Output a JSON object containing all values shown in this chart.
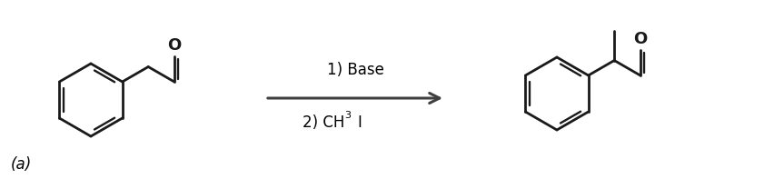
{
  "background_color": "#ffffff",
  "label_a": "(a)",
  "step1": "1) Base",
  "step2": "2) CH",
  "step2_sub": "3",
  "step2_end": "I",
  "arrow_color": "#404040",
  "line_color": "#1a1a1a",
  "line_width": 2.0,
  "figsize": [
    8.41,
    2.08
  ],
  "dpi": 100
}
